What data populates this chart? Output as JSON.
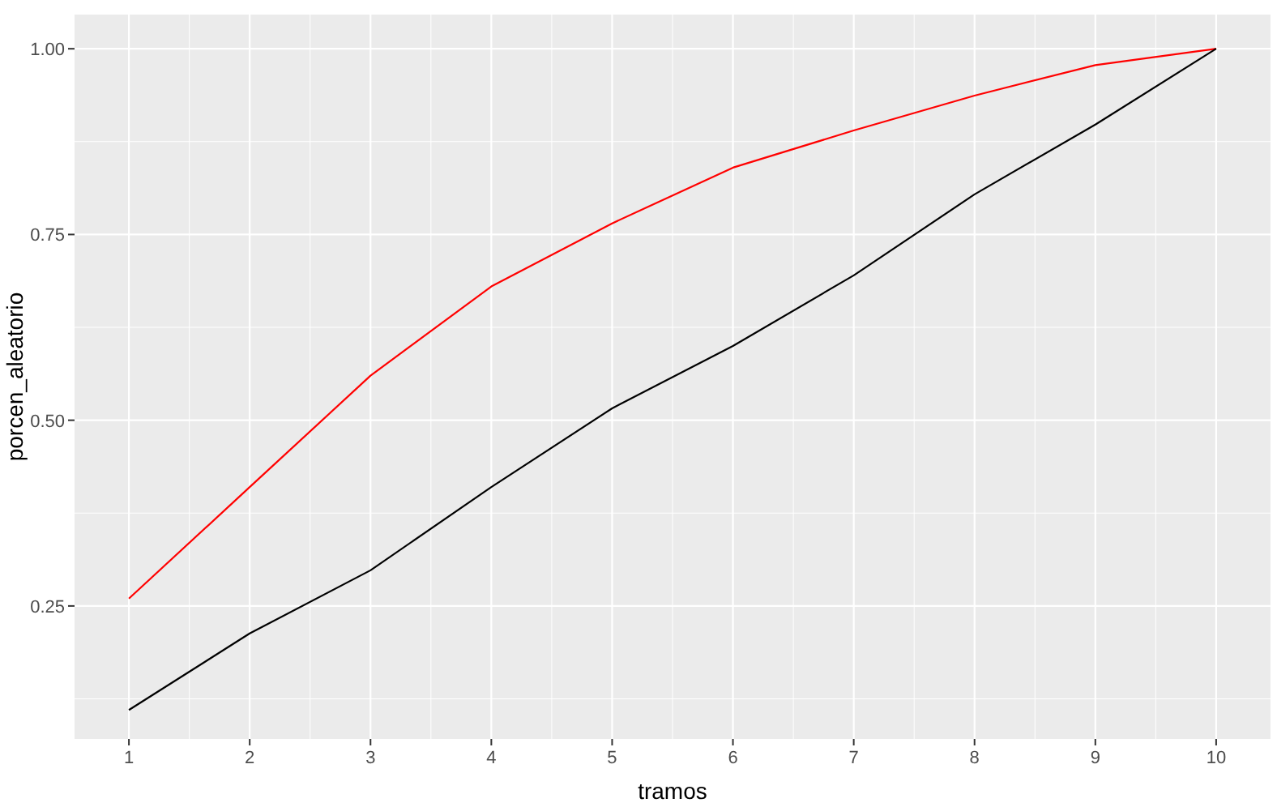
{
  "chart_data": {
    "type": "line",
    "xlabel": "tramos",
    "ylabel": "porcen_aleatorio",
    "x": [
      1,
      2,
      3,
      4,
      5,
      6,
      7,
      8,
      9,
      10
    ],
    "series": [
      {
        "color": "#ff0000",
        "values": [
          0.26,
          0.41,
          0.56,
          0.68,
          0.765,
          0.84,
          0.89,
          0.937,
          0.978,
          1.0
        ]
      },
      {
        "color": "#000000",
        "values": [
          0.11,
          0.213,
          0.298,
          0.41,
          0.516,
          0.6,
          0.695,
          0.804,
          0.898,
          1.0
        ]
      }
    ],
    "xlim": [
      0.55,
      10.45
    ],
    "ylim": [
      0.071,
      1.046
    ],
    "xticks": [
      1,
      2,
      3,
      4,
      5,
      6,
      7,
      8,
      9,
      10
    ],
    "yticks": [
      {
        "value": 0.25,
        "label": "0.25"
      },
      {
        "value": 0.5,
        "label": "0.50"
      },
      {
        "value": 0.75,
        "label": "0.75"
      },
      {
        "value": 1,
        "label": "1.00"
      }
    ],
    "grid": true,
    "marker": "none",
    "line_style": "solid"
  }
}
